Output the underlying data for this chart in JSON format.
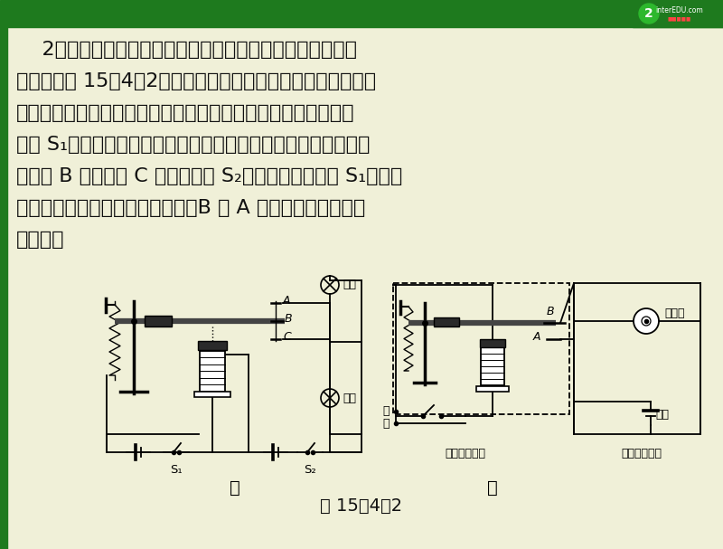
{
  "bg_color": "#f0f0d8",
  "header_color": "#1e7a1e",
  "text_color": "#111111",
  "line1": "    2．工作原理：电磁继电器控制系统由控制电路和工作电路",
  "line2": "组成．如图 15－4－2，图甲为双向控制，图乙为单向控制，两",
  "line3": "图中左侧的电路为控制电路，右侧的电路为工作电路．甲图中，",
  "line4": "闭合 S₁，电磁铁线圈中有电流，电磁铁有磁性，把衔铁吸下来，",
  "line5": "动触点 B 与静触点 C 接触，闭合 S₂，则红灯亮；断开 S₁，电磁",
  "line6": "铁无磁性，复位弹簧把衔铁拉起，B 与 A 接触，工作电路中的",
  "line7": "绿灯亮．",
  "caption": "图 15－4－2",
  "label_jia": "甲",
  "label_yi": "乙",
  "font_size": 16,
  "font_size_small": 9,
  "font_size_caption": 14
}
